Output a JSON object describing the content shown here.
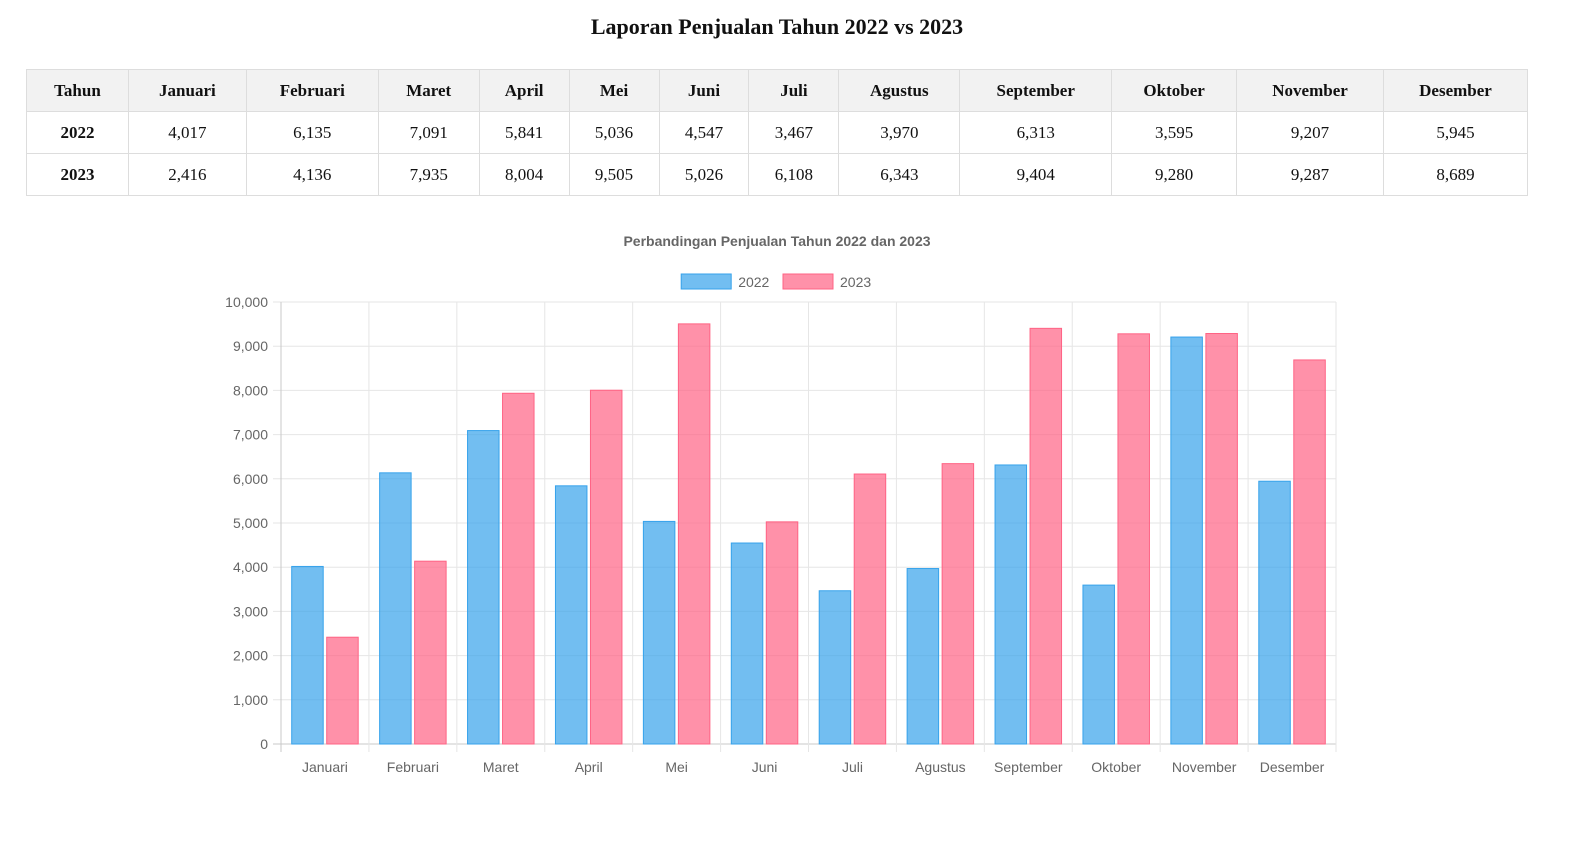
{
  "report_title": "Laporan Penjualan Tahun 2022 vs 2023",
  "table": {
    "header_label": "Tahun",
    "months": [
      "Januari",
      "Februari",
      "Maret",
      "April",
      "Mei",
      "Juni",
      "Juli",
      "Agustus",
      "September",
      "Oktober",
      "November",
      "Desember"
    ],
    "rows": [
      {
        "year": "2022",
        "values": [
          "4,017",
          "6,135",
          "7,091",
          "5,841",
          "5,036",
          "4,547",
          "3,467",
          "3,970",
          "6,313",
          "3,595",
          "9,207",
          "5,945"
        ]
      },
      {
        "year": "2023",
        "values": [
          "2,416",
          "4,136",
          "7,935",
          "8,004",
          "9,505",
          "5,026",
          "6,108",
          "6,343",
          "9,404",
          "9,280",
          "9,287",
          "8,689"
        ]
      }
    ]
  },
  "chart_data": {
    "type": "bar",
    "title": "Perbandingan Penjualan Tahun 2022 dan 2023",
    "categories": [
      "Januari",
      "Februari",
      "Maret",
      "April",
      "Mei",
      "Juni",
      "Juli",
      "Agustus",
      "September",
      "Oktober",
      "November",
      "Desember"
    ],
    "series": [
      {
        "name": "2022",
        "color": "#36a2eb",
        "values": [
          4017,
          6135,
          7091,
          5841,
          5036,
          4547,
          3467,
          3970,
          6313,
          3595,
          9207,
          5945
        ]
      },
      {
        "name": "2023",
        "color": "#ff6384",
        "values": [
          2416,
          4136,
          7935,
          8004,
          9505,
          5026,
          6108,
          6343,
          9404,
          9280,
          9287,
          8689
        ]
      }
    ],
    "ylim": [
      0,
      10000
    ],
    "y_ticks": [
      "0",
      "1,000",
      "2,000",
      "3,000",
      "4,000",
      "5,000",
      "6,000",
      "7,000",
      "8,000",
      "9,000",
      "10,000"
    ],
    "grid": true,
    "legend": "top-center"
  }
}
